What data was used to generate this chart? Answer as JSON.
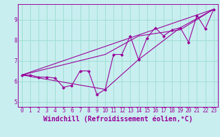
{
  "xlabel": "Windchill (Refroidissement éolien,°C)",
  "background_color": "#c8eef0",
  "grid_color": "#99ddcc",
  "line_color": "#990099",
  "marker_color": "#990099",
  "xlim": [
    -0.5,
    23.5
  ],
  "ylim": [
    4.75,
    9.75
  ],
  "yticks": [
    5,
    6,
    7,
    8,
    9
  ],
  "xticks": [
    0,
    1,
    2,
    3,
    4,
    5,
    6,
    7,
    8,
    9,
    10,
    11,
    12,
    13,
    14,
    15,
    16,
    17,
    18,
    19,
    20,
    21,
    22,
    23
  ],
  "series1_x": [
    0,
    1,
    2,
    3,
    4,
    5,
    6,
    7,
    8,
    9,
    10,
    11,
    12,
    13,
    14,
    15,
    16,
    17,
    18,
    19,
    20,
    21,
    22,
    23
  ],
  "series1_y": [
    6.3,
    6.3,
    6.2,
    6.2,
    6.15,
    5.7,
    5.8,
    6.5,
    6.5,
    5.35,
    5.6,
    7.3,
    7.3,
    8.2,
    7.05,
    8.1,
    8.6,
    8.2,
    8.5,
    8.6,
    7.9,
    9.2,
    8.55,
    9.5
  ],
  "series2_x": [
    0,
    23
  ],
  "series2_y": [
    6.3,
    9.5
  ],
  "series3_x": [
    0,
    10,
    14,
    19,
    23
  ],
  "series3_y": [
    6.3,
    5.6,
    7.05,
    8.6,
    9.5
  ],
  "series4_x": [
    0,
    10,
    14,
    19,
    23
  ],
  "series4_y": [
    6.3,
    7.3,
    8.2,
    8.5,
    9.5
  ],
  "tick_fontsize": 5.5,
  "xlabel_fontsize": 7.0
}
